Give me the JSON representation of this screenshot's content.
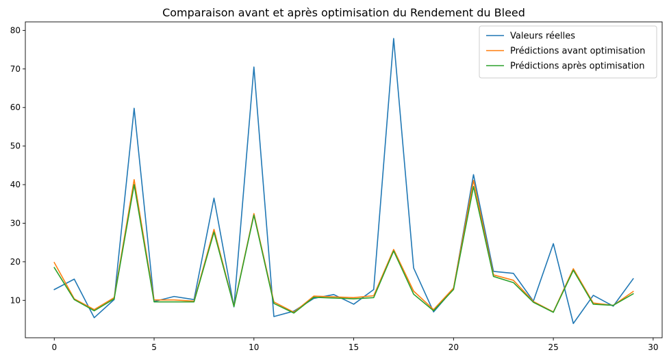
{
  "chart_data": {
    "type": "line",
    "title": "Comparaison avant et après optimisation du Rendement du Bleed",
    "xlabel": "",
    "ylabel": "",
    "xlim": [
      -1.45,
      30.45
    ],
    "ylim": [
      0.3,
      82.2
    ],
    "x_ticks": [
      0,
      5,
      10,
      15,
      20,
      25,
      30
    ],
    "y_ticks": [
      10,
      20,
      30,
      40,
      50,
      60,
      70,
      80
    ],
    "grid": false,
    "legend_position": "top-right",
    "x": [
      0,
      1,
      2,
      3,
      4,
      5,
      6,
      7,
      8,
      9,
      10,
      11,
      12,
      13,
      14,
      15,
      16,
      17,
      18,
      19,
      20,
      21,
      22,
      23,
      24,
      25,
      26,
      27,
      28,
      29
    ],
    "series": [
      {
        "name": "Valeurs réelles",
        "color": "#1f77b4",
        "values": [
          12.8,
          15.5,
          5.5,
          10.2,
          59.8,
          9.7,
          11.0,
          10.2,
          36.5,
          8.3,
          70.5,
          5.8,
          7.2,
          10.5,
          11.5,
          9.0,
          12.8,
          77.9,
          18.4,
          7.0,
          13.0,
          42.6,
          17.5,
          17.0,
          9.8,
          24.7,
          4.0,
          11.3,
          8.5,
          15.6
        ]
      },
      {
        "name": "Prédictions avant optimisation",
        "color": "#ff7f0e",
        "values": [
          19.8,
          10.4,
          7.6,
          10.7,
          41.3,
          10.1,
          10.1,
          9.8,
          28.4,
          8.5,
          32.5,
          9.6,
          6.9,
          11.1,
          10.9,
          10.7,
          11.2,
          23.2,
          12.4,
          7.6,
          13.2,
          41.1,
          16.6,
          15.2,
          9.7,
          7.0,
          18.2,
          9.3,
          8.7,
          12.3
        ]
      },
      {
        "name": "Prédictions après optimisation",
        "color": "#2ca02c",
        "values": [
          18.5,
          10.2,
          7.3,
          10.4,
          40.0,
          9.6,
          9.6,
          9.6,
          27.7,
          8.4,
          32.1,
          9.2,
          6.7,
          10.8,
          10.6,
          10.4,
          10.7,
          22.8,
          11.6,
          7.3,
          12.8,
          39.5,
          16.2,
          14.6,
          9.5,
          6.9,
          17.8,
          9.0,
          8.7,
          11.7
        ]
      }
    ]
  }
}
